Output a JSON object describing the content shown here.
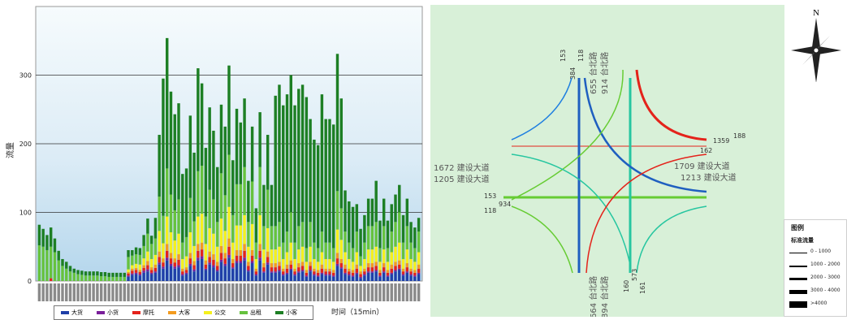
{
  "chart_data": {
    "type": "bar",
    "stacked": true,
    "ylabel": "流量",
    "xlabel": "时间（15min）",
    "ylim": [
      0,
      400
    ],
    "y_ticks": [
      0,
      100,
      200,
      300
    ],
    "grid": true,
    "legend_position": "bottom",
    "series": [
      {
        "name": "大货",
        "color": "#1f3fa8",
        "values": [
          0,
          0,
          0,
          0,
          0,
          0,
          0,
          0,
          0,
          0,
          0,
          0,
          0,
          0,
          0,
          0,
          0,
          0,
          0,
          0,
          0,
          0,
          0,
          6,
          9,
          10,
          8,
          12,
          14,
          10,
          12,
          24,
          18,
          30,
          22,
          18,
          20,
          8,
          10,
          22,
          14,
          30,
          32,
          16,
          24,
          20,
          14,
          28,
          22,
          34,
          18,
          26,
          26,
          30,
          14,
          26,
          8,
          30,
          12,
          24,
          12,
          12,
          14,
          8,
          10,
          16,
          8,
          12,
          14,
          6,
          14,
          8,
          6,
          10,
          8,
          8,
          6,
          22,
          18,
          10,
          8,
          6,
          10,
          4,
          8,
          12,
          12,
          14,
          6,
          12,
          6,
          10,
          14,
          16,
          8,
          12,
          8,
          6,
          10
        ]
      },
      {
        "name": "小货",
        "color": "#7a1f9a",
        "values": [
          0,
          0,
          0,
          0,
          0,
          0,
          0,
          0,
          0,
          0,
          0,
          0,
          0,
          0,
          0,
          0,
          0,
          0,
          0,
          0,
          0,
          0,
          0,
          2,
          2,
          2,
          2,
          3,
          3,
          2,
          2,
          3,
          3,
          4,
          3,
          3,
          3,
          2,
          2,
          3,
          3,
          4,
          4,
          2,
          3,
          3,
          2,
          3,
          3,
          4,
          2,
          3,
          3,
          4,
          2,
          3,
          2,
          4,
          2,
          3,
          2,
          2,
          2,
          2,
          2,
          2,
          2,
          2,
          2,
          2,
          2,
          2,
          2,
          2,
          2,
          2,
          2,
          3,
          2,
          2,
          2,
          2,
          2,
          2,
          2,
          2,
          2,
          2,
          2,
          2,
          2,
          2,
          2,
          2,
          2,
          2,
          2,
          2,
          2
        ]
      },
      {
        "name": "摩托",
        "color": "#e4231b",
        "values": [
          0,
          0,
          0,
          4,
          0,
          0,
          0,
          0,
          0,
          0,
          0,
          0,
          0,
          0,
          0,
          0,
          0,
          0,
          0,
          0,
          0,
          0,
          0,
          3,
          4,
          4,
          3,
          4,
          6,
          4,
          5,
          8,
          6,
          10,
          8,
          6,
          8,
          4,
          4,
          8,
          6,
          10,
          10,
          6,
          8,
          8,
          6,
          10,
          8,
          12,
          6,
          8,
          8,
          10,
          6,
          8,
          4,
          10,
          6,
          8,
          6,
          6,
          6,
          4,
          6,
          6,
          4,
          6,
          6,
          4,
          6,
          4,
          4,
          6,
          4,
          4,
          4,
          8,
          6,
          6,
          4,
          4,
          6,
          4,
          4,
          6,
          6,
          6,
          4,
          6,
          4,
          6,
          6,
          6,
          4,
          6,
          4,
          4,
          6
        ]
      },
      {
        "name": "大客",
        "color": "#f39b1f",
        "values": [
          0,
          0,
          0,
          0,
          0,
          0,
          0,
          0,
          0,
          0,
          0,
          0,
          0,
          0,
          0,
          0,
          0,
          0,
          0,
          0,
          0,
          0,
          0,
          2,
          3,
          3,
          3,
          4,
          6,
          4,
          5,
          8,
          6,
          10,
          8,
          6,
          8,
          4,
          4,
          8,
          6,
          10,
          10,
          6,
          8,
          8,
          6,
          10,
          8,
          12,
          6,
          8,
          8,
          10,
          6,
          8,
          4,
          10,
          6,
          8,
          6,
          6,
          6,
          4,
          6,
          6,
          4,
          6,
          6,
          4,
          6,
          4,
          4,
          6,
          4,
          4,
          4,
          8,
          6,
          6,
          4,
          4,
          6,
          4,
          4,
          6,
          6,
          6,
          4,
          6,
          4,
          6,
          6,
          6,
          4,
          6,
          4,
          4,
          6
        ]
      },
      {
        "name": "公交",
        "color": "#f5f01e",
        "values": [
          0,
          0,
          0,
          0,
          0,
          0,
          0,
          0,
          0,
          0,
          0,
          0,
          0,
          0,
          0,
          0,
          0,
          0,
          0,
          0,
          0,
          0,
          0,
          4,
          5,
          6,
          8,
          10,
          14,
          12,
          14,
          30,
          22,
          40,
          30,
          26,
          30,
          14,
          16,
          30,
          22,
          40,
          42,
          24,
          34,
          30,
          22,
          40,
          32,
          46,
          24,
          36,
          36,
          42,
          22,
          38,
          14,
          42,
          20,
          34,
          20,
          20,
          22,
          14,
          18,
          26,
          14,
          20,
          22,
          12,
          22,
          14,
          12,
          18,
          14,
          14,
          12,
          34,
          28,
          18,
          14,
          12,
          18,
          8,
          14,
          20,
          20,
          22,
          12,
          20,
          12,
          18,
          22,
          26,
          14,
          20,
          14,
          12,
          18
        ]
      },
      {
        "name": "出租",
        "color": "#66c23e",
        "values": [
          52,
          50,
          45,
          46,
          42,
          30,
          22,
          18,
          14,
          12,
          10,
          9,
          8,
          8,
          8,
          8,
          7,
          7,
          6,
          6,
          6,
          6,
          6,
          18,
          14,
          14,
          14,
          18,
          26,
          22,
          24,
          50,
          40,
          70,
          55,
          44,
          50,
          24,
          28,
          50,
          36,
          66,
          70,
          40,
          56,
          50,
          36,
          66,
          52,
          76,
          40,
          60,
          60,
          70,
          36,
          62,
          24,
          70,
          34,
          56,
          34,
          34,
          36,
          24,
          30,
          44,
          24,
          34,
          36,
          20,
          36,
          24,
          20,
          30,
          24,
          24,
          20,
          56,
          46,
          30,
          24,
          20,
          30,
          14,
          24,
          34,
          34,
          36,
          20,
          34,
          20,
          30,
          36,
          44,
          24,
          34,
          24,
          20,
          30
        ]
      },
      {
        "name": "小客",
        "color": "#1d7f24",
        "values": [
          30,
          26,
          22,
          28,
          20,
          14,
          10,
          10,
          8,
          6,
          6,
          6,
          6,
          6,
          6,
          6,
          6,
          6,
          6,
          6,
          6,
          6,
          6,
          10,
          8,
          10,
          10,
          16,
          22,
          12,
          30,
          90,
          200,
          190,
          150,
          140,
          140,
          100,
          100,
          120,
          100,
          150,
          120,
          100,
          120,
          100,
          80,
          100,
          100,
          130,
          80,
          110,
          90,
          100,
          60,
          80,
          50,
          80,
          60,
          80,
          60,
          190,
          200,
          200,
          200,
          200,
          200,
          200,
          200,
          220,
          150,
          150,
          150,
          200,
          180,
          180,
          180,
          200,
          160,
          60,
          60,
          60,
          40,
          40,
          40,
          40,
          40,
          60,
          40,
          40,
          40,
          40,
          40,
          40,
          40,
          40,
          30,
          30,
          20
        ]
      }
    ]
  },
  "map": {
    "north_label": "N",
    "road_labels": {
      "north_road": "655 台北路",
      "north_road_in": "914 台北路",
      "south_road_out": "664 台北路",
      "south_road_in": "894 台北路",
      "west_road_out": "1672 建设大道",
      "west_road_in": "1205 建设大道",
      "east_road_out": "1709 建设大道",
      "east_road_in": "1213 建设大道"
    },
    "movement_numbers": {
      "n1": "153",
      "n2": "384",
      "n3": "118",
      "e1": "162",
      "e2": "1359",
      "e3": "188",
      "w1": "153",
      "w2": "934",
      "w3": "118",
      "s1": "160",
      "s2": "573",
      "s3": "161"
    }
  },
  "legend": {
    "title": "图例",
    "subtitle": "标准流量",
    "rows": [
      "0 - 1000",
      "1000 - 2000",
      "2000 - 3000",
      "3000 - 4000",
      ">4000"
    ]
  }
}
